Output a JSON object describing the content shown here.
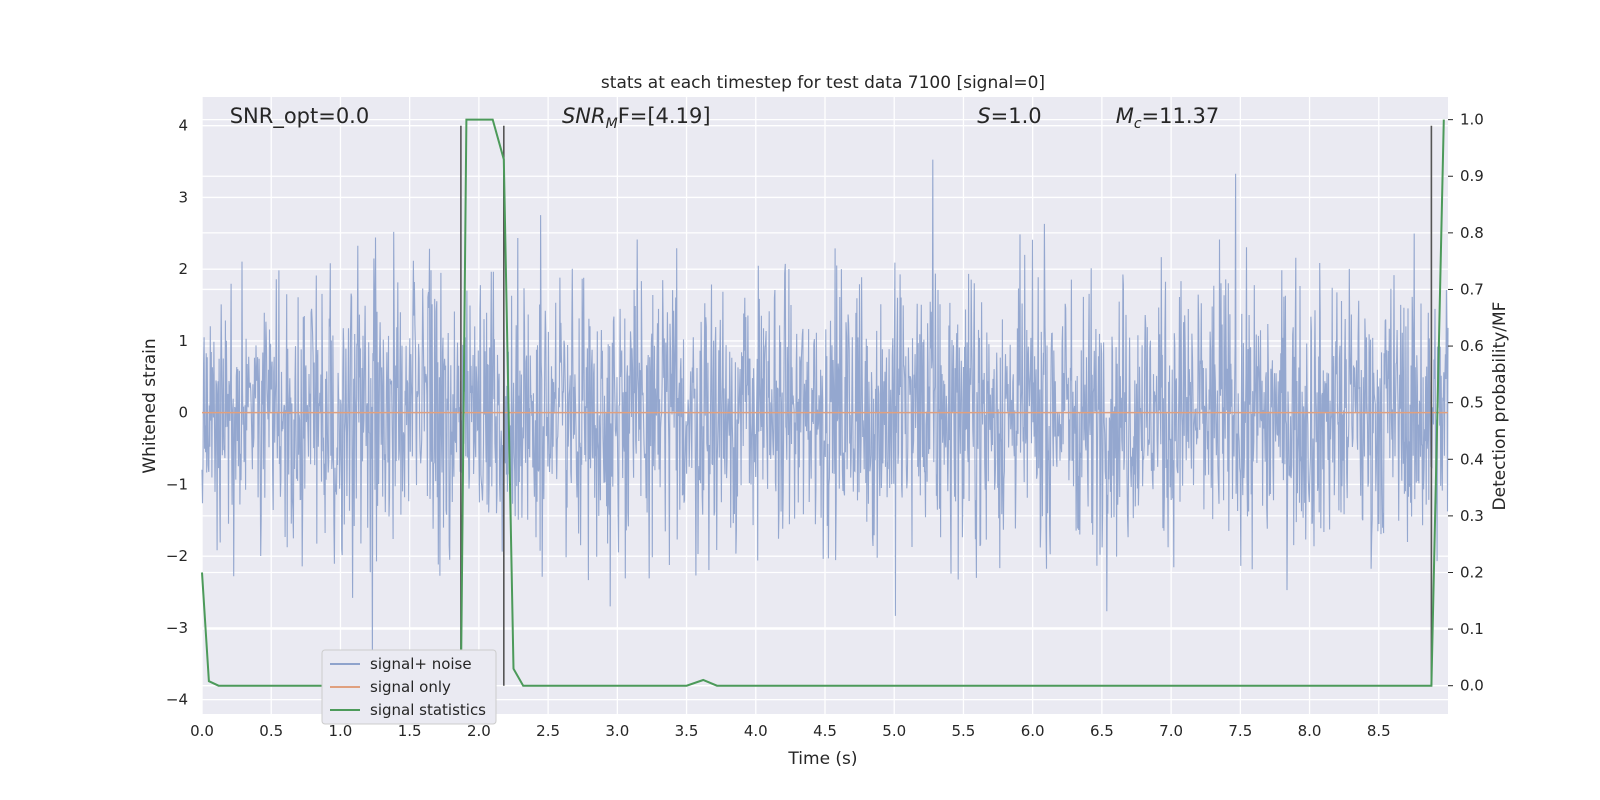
{
  "chart_data": {
    "type": "line",
    "title": "stats at each timestep for test data 7100 [signal=0]",
    "xlabel": "Time (s)",
    "ylabel": "Whitened strain",
    "y2label": "Detection probability/MF",
    "xlim": [
      0.0,
      9.0
    ],
    "ylim": [
      -4.2,
      4.4
    ],
    "y2lim": [
      -0.05,
      1.04
    ],
    "xticks": [
      "0.0",
      "0.5",
      "1.0",
      "1.5",
      "2.0",
      "2.5",
      "3.0",
      "3.5",
      "4.0",
      "4.5",
      "5.0",
      "5.5",
      "6.0",
      "6.5",
      "7.0",
      "7.5",
      "8.0",
      "8.5"
    ],
    "yticks": [
      "4",
      "3",
      "2",
      "1",
      "0",
      "−1",
      "−2",
      "−3",
      "−4"
    ],
    "y2ticks": [
      "1.0",
      "0.9",
      "0.8",
      "0.7",
      "0.6",
      "0.5",
      "0.4",
      "0.3",
      "0.2",
      "0.1",
      "0.0"
    ],
    "grid": true,
    "legend_position": "lower-left",
    "annotations": [
      {
        "label": "SNR_opt=0.0",
        "x": 0.2
      },
      {
        "label": "SNR",
        "sub": "M",
        "suffix": "F=[4.19]",
        "x": 2.6
      },
      {
        "label": "S",
        "suffix": "=1.0",
        "x": 5.6
      },
      {
        "label": "M",
        "sub": "c",
        "suffix": "=11.37",
        "x": 6.6
      }
    ],
    "vlines": [
      1.87,
      2.18,
      8.88
    ],
    "series": [
      {
        "name": "signal+ noise",
        "color": "#8fa3cc",
        "description": "noise",
        "amplitude_envelope": [
          -3.8,
          4.0
        ]
      },
      {
        "name": "signal only",
        "color": "#e0a07f",
        "x": [
          0.0,
          9.0
        ],
        "y": [
          0.0,
          0.0
        ]
      },
      {
        "name": "signal statistics",
        "color": "#4c9a5a",
        "axis": "right",
        "x": [
          0.0,
          0.05,
          0.12,
          0.5,
          1.0,
          1.5,
          1.8,
          1.87,
          1.91,
          2.0,
          2.1,
          2.18,
          2.25,
          2.32,
          2.5,
          3.0,
          3.5,
          3.62,
          3.72,
          4.0,
          5.0,
          6.0,
          7.0,
          8.0,
          8.6,
          8.88,
          8.97
        ],
        "y": [
          0.2,
          0.008,
          0.0,
          0.0,
          0.0,
          0.0,
          0.0,
          0.0,
          1.0,
          1.0,
          1.0,
          0.93,
          0.03,
          0.0,
          0.0,
          0.0,
          0.0,
          0.01,
          0.0,
          0.0,
          0.0,
          0.0,
          0.0,
          0.0,
          0.0,
          0.0,
          1.0
        ]
      }
    ]
  }
}
